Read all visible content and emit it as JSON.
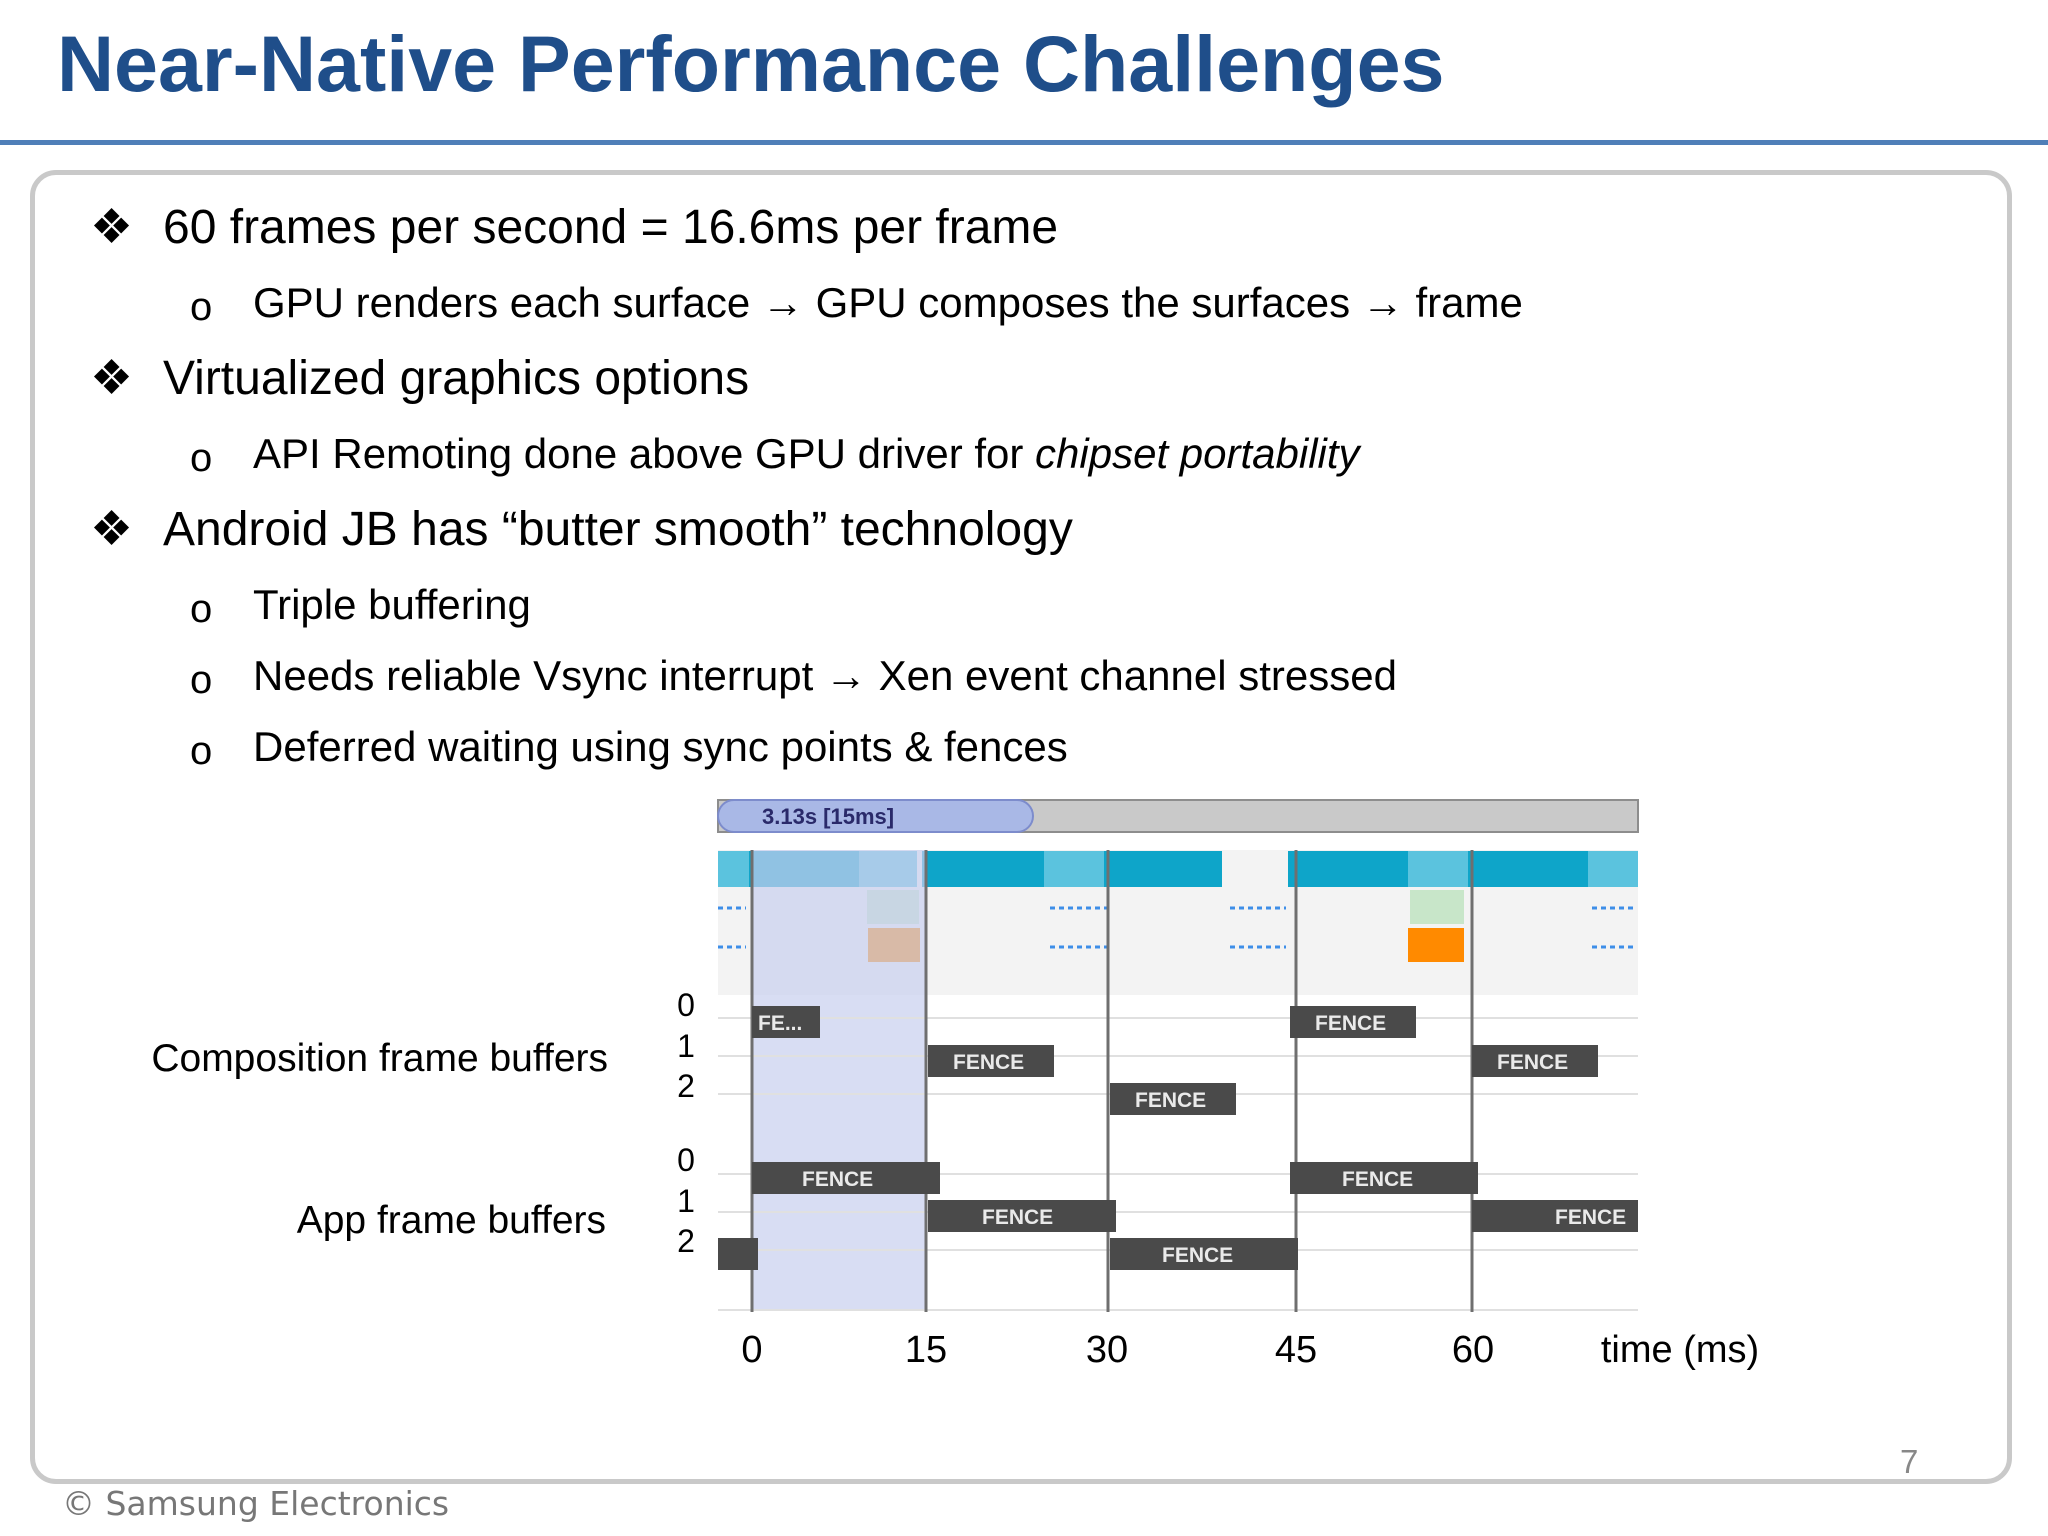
{
  "slide": {
    "title": "Near-Native Performance Challenges",
    "page_number": "7",
    "copyright": "© Samsung Electronics"
  },
  "bullets": [
    {
      "level": 1,
      "text": "60 frames per second = 16.6ms per frame"
    },
    {
      "level": 2,
      "parts": [
        "GPU renders each surface ",
        "→",
        " GPU composes the surfaces ",
        "→",
        " frame"
      ]
    },
    {
      "level": 1,
      "text": "Virtualized graphics options"
    },
    {
      "level": 2,
      "plain": "API Remoting done above GPU driver for ",
      "italic": "chipset portability"
    },
    {
      "level": 1,
      "text": "Android JB has “butter smooth” technology"
    },
    {
      "level": 2,
      "text": "Triple buffering"
    },
    {
      "level": 2,
      "parts": [
        "Needs reliable Vsync interrupt ",
        "→",
        " Xen event channel stressed"
      ]
    },
    {
      "level": 2,
      "text": "Deferred waiting using sync points & fences"
    }
  ],
  "glyphs": {
    "level1_bullet": "❖",
    "level2_bullet": "o"
  },
  "timeline": {
    "header_label": "3.13s [15ms]",
    "composition_label": "Composition frame buffers",
    "app_label": "App frame buffers",
    "row_labels": [
      "0",
      "1",
      "2"
    ],
    "x_ticks": [
      "0",
      "15",
      "30",
      "45",
      "60"
    ],
    "x_axis_label": "time (ms)",
    "fence_label": "FENCE",
    "fence_truncated_label": "FE...",
    "colors": {
      "frame_bar": "#0ea5c9",
      "frame_bar_light": "#5bc3de",
      "highlight_band": "#c8ceee",
      "fence_box": "#4a4a4a",
      "orange": "#ff8a00",
      "light_green": "#c8e6c9",
      "dashed_blue": "#3d8ee8"
    }
  }
}
